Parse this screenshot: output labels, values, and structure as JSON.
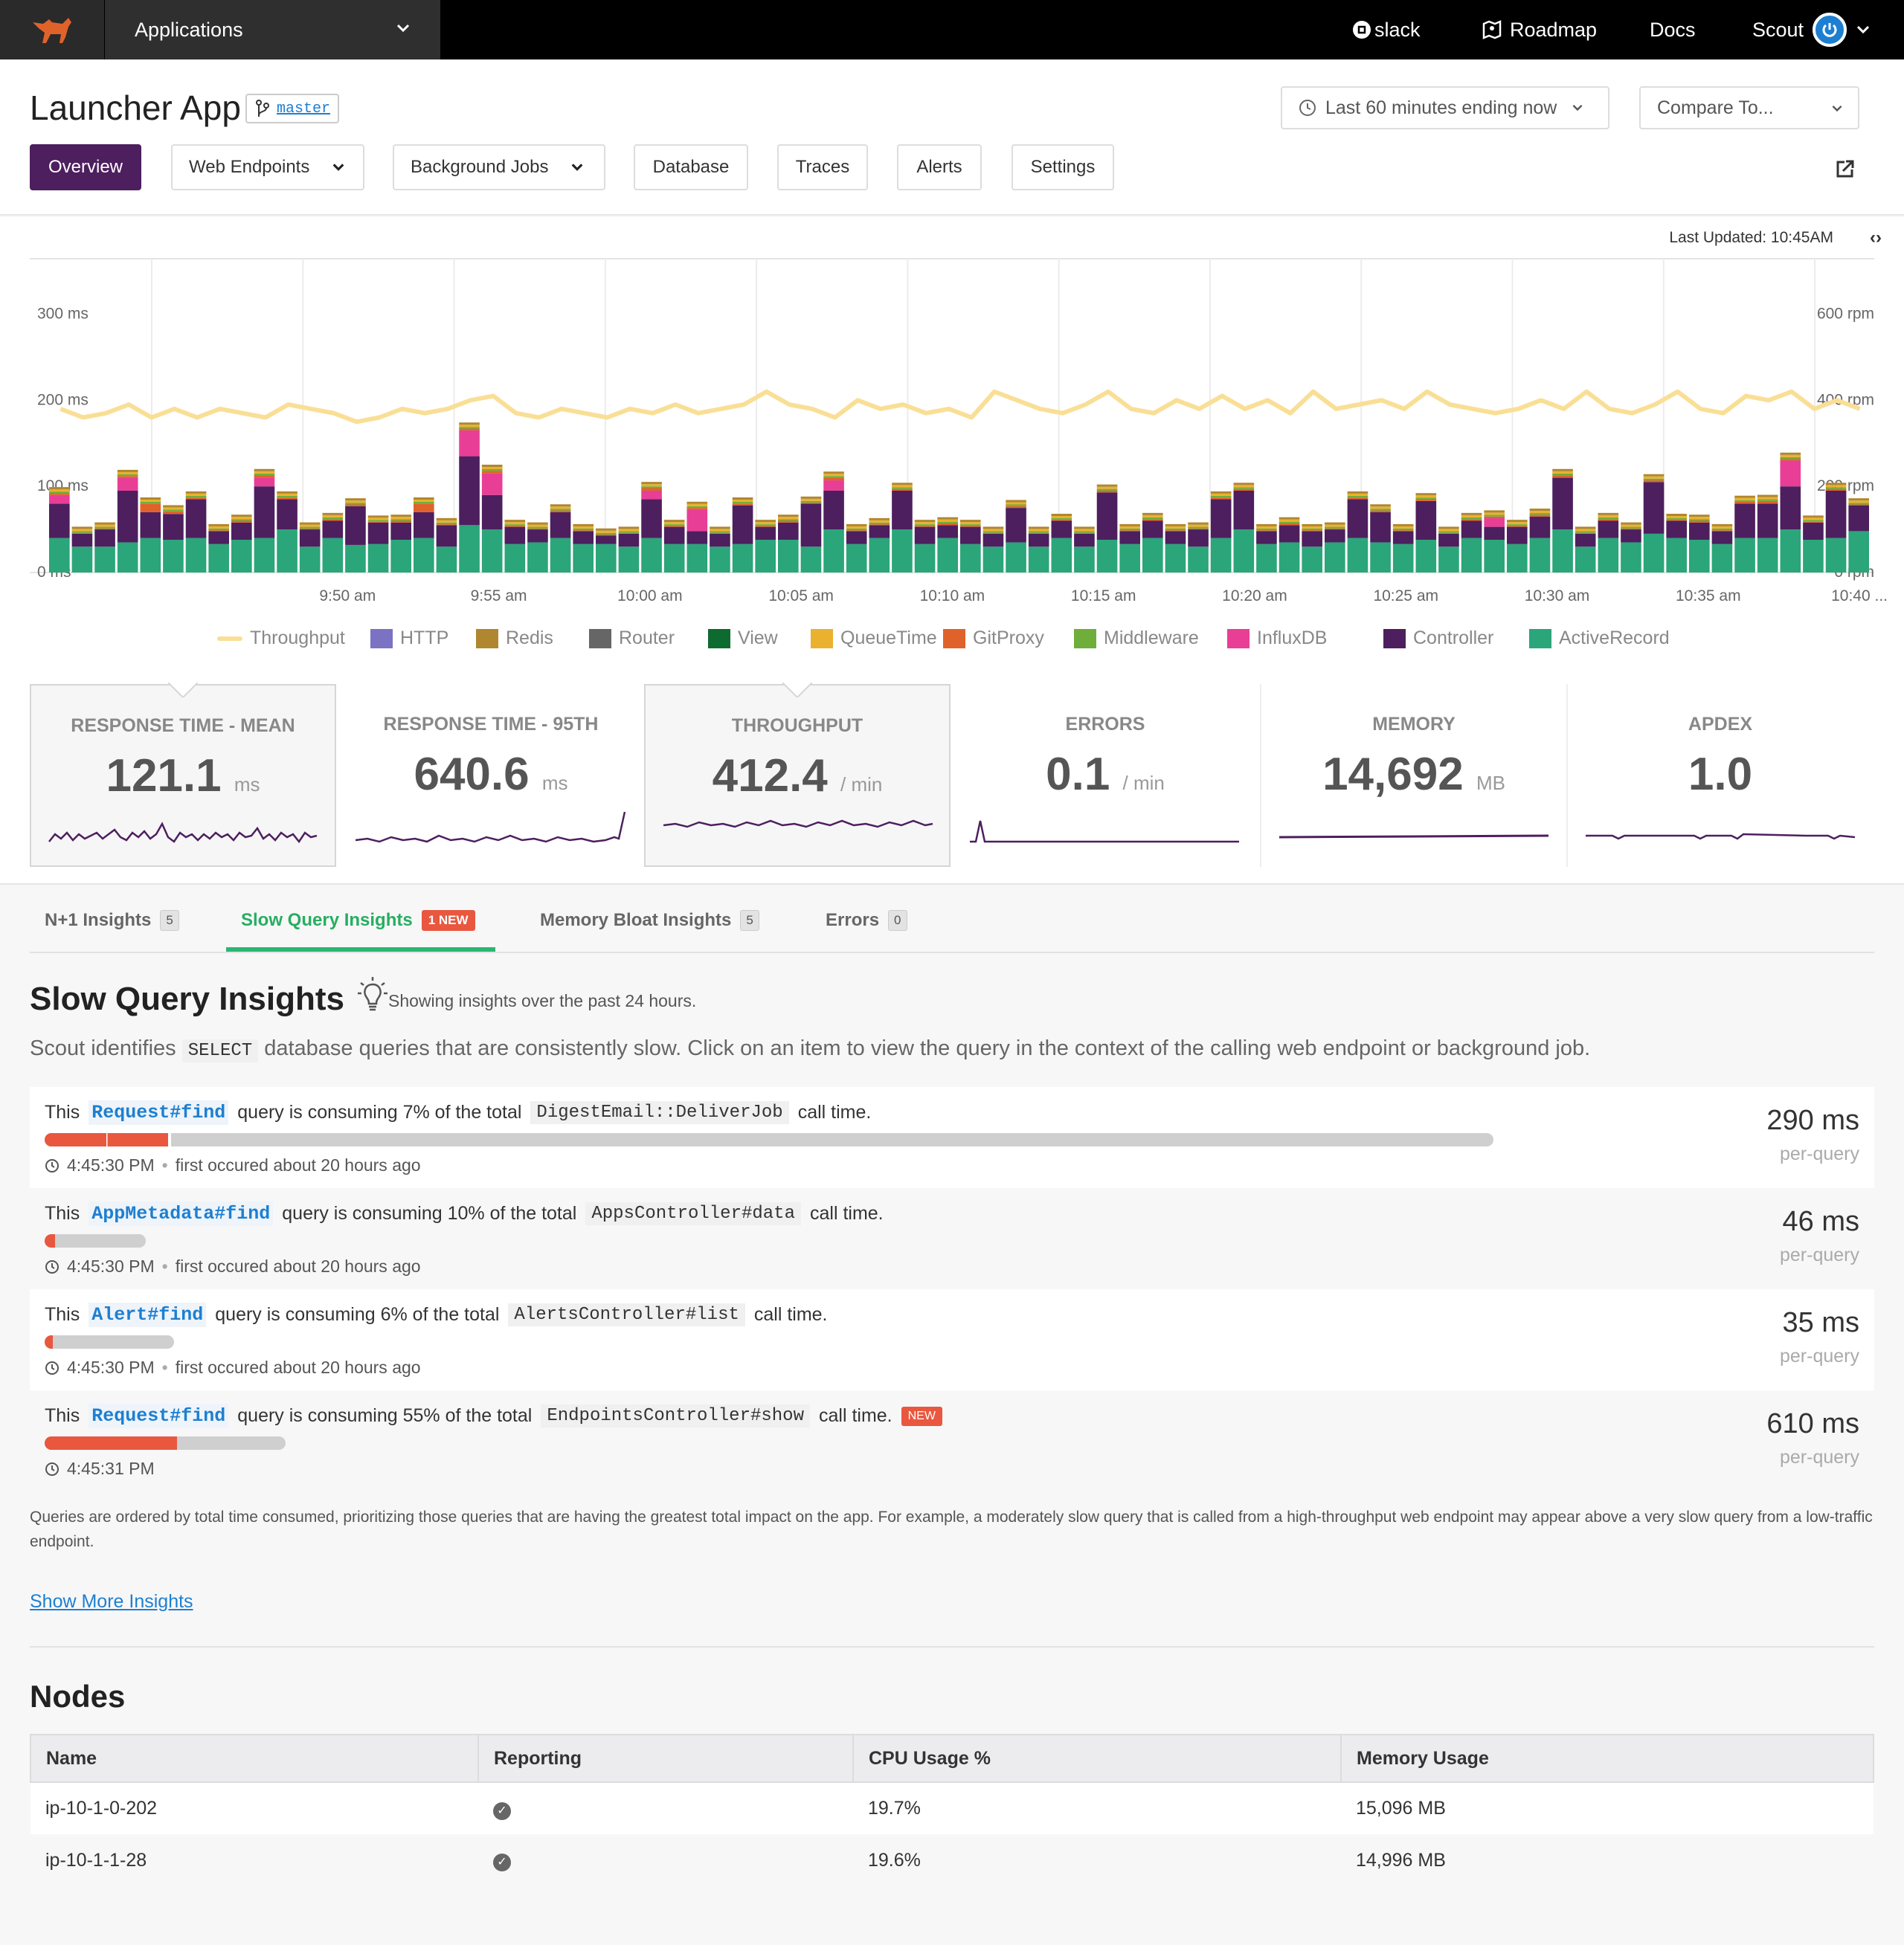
{
  "topbar": {
    "app_selector": "Applications",
    "links": {
      "slack": "slack",
      "roadmap": "Roadmap",
      "docs": "Docs",
      "user": "Scout"
    }
  },
  "header": {
    "title": "Launcher App",
    "branch": "master",
    "time_range": "Last 60 minutes ending now",
    "compare": "Compare To...",
    "nav": [
      "Overview",
      "Web Endpoints",
      "Background Jobs",
      "Database",
      "Traces",
      "Alerts",
      "Settings"
    ]
  },
  "chart": {
    "last_updated": "Last Updated: 10:45AM"
  },
  "chart_data": {
    "type": "bar",
    "left_axis": {
      "ticks": [
        "0 ms",
        "100 ms",
        "200 ms",
        "300 ms"
      ],
      "ylim": [
        0,
        300
      ]
    },
    "right_axis": {
      "ticks": [
        "0 rpm",
        "200 rpm",
        "400 rpm",
        "600 rpm"
      ],
      "ylim": [
        0,
        600
      ]
    },
    "x_ticks": [
      "9:50 am",
      "9:55 am",
      "10:00 am",
      "10:05 am",
      "10:10 am",
      "10:15 am",
      "10:20 am",
      "10:25 am",
      "10:30 am",
      "10:35 am",
      "10:40 ..."
    ],
    "legend": [
      {
        "name": "Throughput",
        "color": "#f9df96"
      },
      {
        "name": "HTTP",
        "color": "#7b72c4"
      },
      {
        "name": "Redis",
        "color": "#b0862f"
      },
      {
        "name": "Router",
        "color": "#666666"
      },
      {
        "name": "View",
        "color": "#0e6b2f"
      },
      {
        "name": "QueueTime",
        "color": "#eab12f"
      },
      {
        "name": "GitProxy",
        "color": "#e0622b"
      },
      {
        "name": "Middleware",
        "color": "#6fae3a"
      },
      {
        "name": "InfluxDB",
        "color": "#e83e96"
      },
      {
        "name": "Controller",
        "color": "#4d1f5e"
      },
      {
        "name": "ActiveRecord",
        "color": "#2ba57a"
      }
    ],
    "stacked_ms": {
      "ActiveRecord": [
        40,
        30,
        30,
        35,
        40,
        38,
        40,
        33,
        38,
        40,
        50,
        30,
        40,
        32,
        33,
        38,
        40,
        30,
        55,
        50,
        33,
        35,
        40,
        33,
        33,
        30,
        40,
        33,
        33,
        30,
        33,
        38,
        38,
        30,
        50,
        33,
        40,
        50,
        33,
        40,
        33,
        30,
        35,
        30,
        40,
        30,
        38,
        33,
        40,
        33,
        30,
        40,
        50,
        33,
        35,
        30,
        35,
        40,
        35,
        33,
        38,
        30,
        40,
        38,
        33,
        40,
        50,
        30,
        40,
        35,
        45,
        40,
        38,
        33,
        40,
        40,
        50,
        38,
        40,
        48
      ],
      "Controller": [
        40,
        15,
        20,
        60,
        30,
        30,
        45,
        15,
        20,
        60,
        35,
        20,
        20,
        45,
        25,
        20,
        30,
        25,
        80,
        40,
        20,
        15,
        30,
        15,
        10,
        15,
        45,
        20,
        15,
        15,
        45,
        15,
        20,
        50,
        45,
        15,
        15,
        45,
        20,
        15,
        20,
        15,
        40,
        15,
        20,
        15,
        55,
        15,
        20,
        15,
        20,
        45,
        45,
        15,
        20,
        18,
        15,
        45,
        35,
        15,
        45,
        15,
        20,
        15,
        20,
        25,
        60,
        15,
        20,
        15,
        60,
        20,
        20,
        15,
        40,
        40,
        50,
        20,
        55,
        30
      ],
      "InfluxDB": [
        10,
        0,
        0,
        15,
        0,
        0,
        0,
        0,
        0,
        10,
        0,
        0,
        0,
        0,
        0,
        0,
        0,
        0,
        30,
        25,
        0,
        0,
        0,
        0,
        0,
        0,
        10,
        0,
        25,
        0,
        0,
        0,
        0,
        0,
        12,
        0,
        0,
        0,
        0,
        0,
        0,
        0,
        0,
        0,
        0,
        0,
        0,
        0,
        0,
        0,
        0,
        0,
        0,
        0,
        0,
        0,
        0,
        0,
        0,
        0,
        0,
        0,
        0,
        10,
        0,
        0,
        0,
        0,
        0,
        0,
        0,
        0,
        0,
        0,
        0,
        0,
        30,
        0,
        0,
        0
      ],
      "Middleware": [
        2,
        2,
        2,
        2,
        2,
        2,
        2,
        2,
        2,
        2,
        2,
        2,
        2,
        2,
        2,
        2,
        2,
        2,
        2,
        2,
        2,
        2,
        2,
        2,
        2,
        2,
        2,
        2,
        2,
        2,
        2,
        2,
        2,
        2,
        2,
        2,
        2,
        2,
        2,
        2,
        2,
        2,
        2,
        2,
        2,
        2,
        2,
        2,
        2,
        2,
        2,
        2,
        2,
        2,
        2,
        2,
        2,
        2,
        2,
        2,
        2,
        2,
        2,
        2,
        2,
        2,
        2,
        2,
        2,
        2,
        2,
        2,
        2,
        2,
        2,
        2,
        2,
        2,
        2,
        2
      ],
      "GitProxy": [
        2,
        1,
        1,
        2,
        10,
        3,
        2,
        1,
        2,
        3,
        2,
        1,
        2,
        2,
        1,
        2,
        10,
        1,
        2,
        3,
        1,
        1,
        2,
        1,
        1,
        1,
        3,
        1,
        2,
        1,
        2,
        1,
        2,
        1,
        3,
        1,
        1,
        2,
        1,
        2,
        1,
        1,
        2,
        1,
        1,
        1,
        2,
        1,
        2,
        1,
        1,
        2,
        2,
        1,
        2,
        1,
        1,
        2,
        2,
        1,
        2,
        1,
        2,
        2,
        1,
        2,
        3,
        1,
        2,
        1,
        2,
        1,
        2,
        1,
        2,
        3,
        2,
        1,
        2,
        1
      ]
    },
    "throughput_rpm": [
      380,
      360,
      370,
      390,
      360,
      380,
      360,
      380,
      370,
      360,
      390,
      380,
      370,
      350,
      360,
      380,
      370,
      380,
      400,
      410,
      370,
      360,
      380,
      370,
      360,
      380,
      370,
      390,
      370,
      380,
      390,
      420,
      390,
      380,
      360,
      400,
      380,
      390,
      370,
      380,
      360,
      420,
      400,
      380,
      370,
      390,
      420,
      380,
      370,
      400,
      380,
      410,
      380,
      400,
      370,
      420,
      380,
      390,
      400,
      380,
      420,
      390,
      380,
      370,
      380,
      400,
      380,
      420,
      380,
      370,
      390,
      420,
      380,
      370,
      410,
      400,
      420,
      380,
      400,
      380
    ]
  },
  "metrics": [
    {
      "label": "RESPONSE TIME - MEAN",
      "value": "121.1",
      "unit": "ms"
    },
    {
      "label": "RESPONSE TIME - 95TH",
      "value": "640.6",
      "unit": "ms"
    },
    {
      "label": "THROUGHPUT",
      "value": "412.4",
      "unit": "/ min"
    },
    {
      "label": "ERRORS",
      "value": "0.1",
      "unit": "/ min"
    },
    {
      "label": "MEMORY",
      "value": "14,692",
      "unit": "MB"
    },
    {
      "label": "APDEX",
      "value": "1.0",
      "unit": ""
    }
  ],
  "tabs": [
    {
      "label": "N+1 Insights",
      "count": "5"
    },
    {
      "label": "Slow Query Insights",
      "badge": "1 NEW"
    },
    {
      "label": "Memory Bloat Insights",
      "count": "5"
    },
    {
      "label": "Errors",
      "count": "0"
    }
  ],
  "slow_query": {
    "title": "Slow Query Insights",
    "subtitle": "Showing insights over the past 24 hours.",
    "desc_before": "Scout identifies",
    "desc_code": "SELECT",
    "desc_after": "database queries that are consistently slow. Click on an item to view the query in the context of the calling web endpoint or background job.",
    "rows": [
      {
        "this": "This",
        "method": "Request#find",
        "mid": "query is consuming 7% of the total",
        "target": "DigestEmail::DeliverJob",
        "end": "call time.",
        "time": "4:45:30 PM",
        "first": "first occured about 20 hours ago",
        "value": "290 ms",
        "per": "per-query",
        "fraction": 0.07
      },
      {
        "this": "This",
        "method": "AppMetadata#find",
        "mid": "query is consuming 10% of the total",
        "target": "AppsController#data",
        "end": "call time.",
        "time": "4:45:30 PM",
        "first": "first occured about 20 hours ago",
        "value": "46 ms",
        "per": "per-query",
        "fraction": 0.1
      },
      {
        "this": "This",
        "method": "Alert#find",
        "mid": "query is consuming 6% of the total",
        "target": "AlertsController#list",
        "end": "call time.",
        "time": "4:45:30 PM",
        "first": "first occured about 20 hours ago",
        "value": "35 ms",
        "per": "per-query",
        "fraction": 0.06
      },
      {
        "this": "This",
        "method": "Request#find",
        "mid": "query is consuming 55% of the total",
        "target": "EndpointsController#show",
        "end": "call time.",
        "badge": "NEW",
        "time": "4:45:31 PM",
        "value": "610 ms",
        "per": "per-query",
        "fraction": 0.55
      }
    ],
    "note": "Queries are ordered by total time consumed, prioritizing those queries that are having the greatest total impact on the app. For example, a moderately slow query that is called from a high-throughput web endpoint may appear above a very slow query from a low-traffic endpoint.",
    "show_more": "Show More Insights"
  },
  "nodes": {
    "title": "Nodes",
    "columns": [
      "Name",
      "Reporting",
      "CPU Usage %",
      "Memory Usage"
    ],
    "rows": [
      {
        "name": "ip-10-1-0-202",
        "cpu": "19.7%",
        "memory": "15,096 MB"
      },
      {
        "name": "ip-10-1-1-28",
        "cpu": "19.6%",
        "memory": "14,996 MB"
      }
    ]
  }
}
